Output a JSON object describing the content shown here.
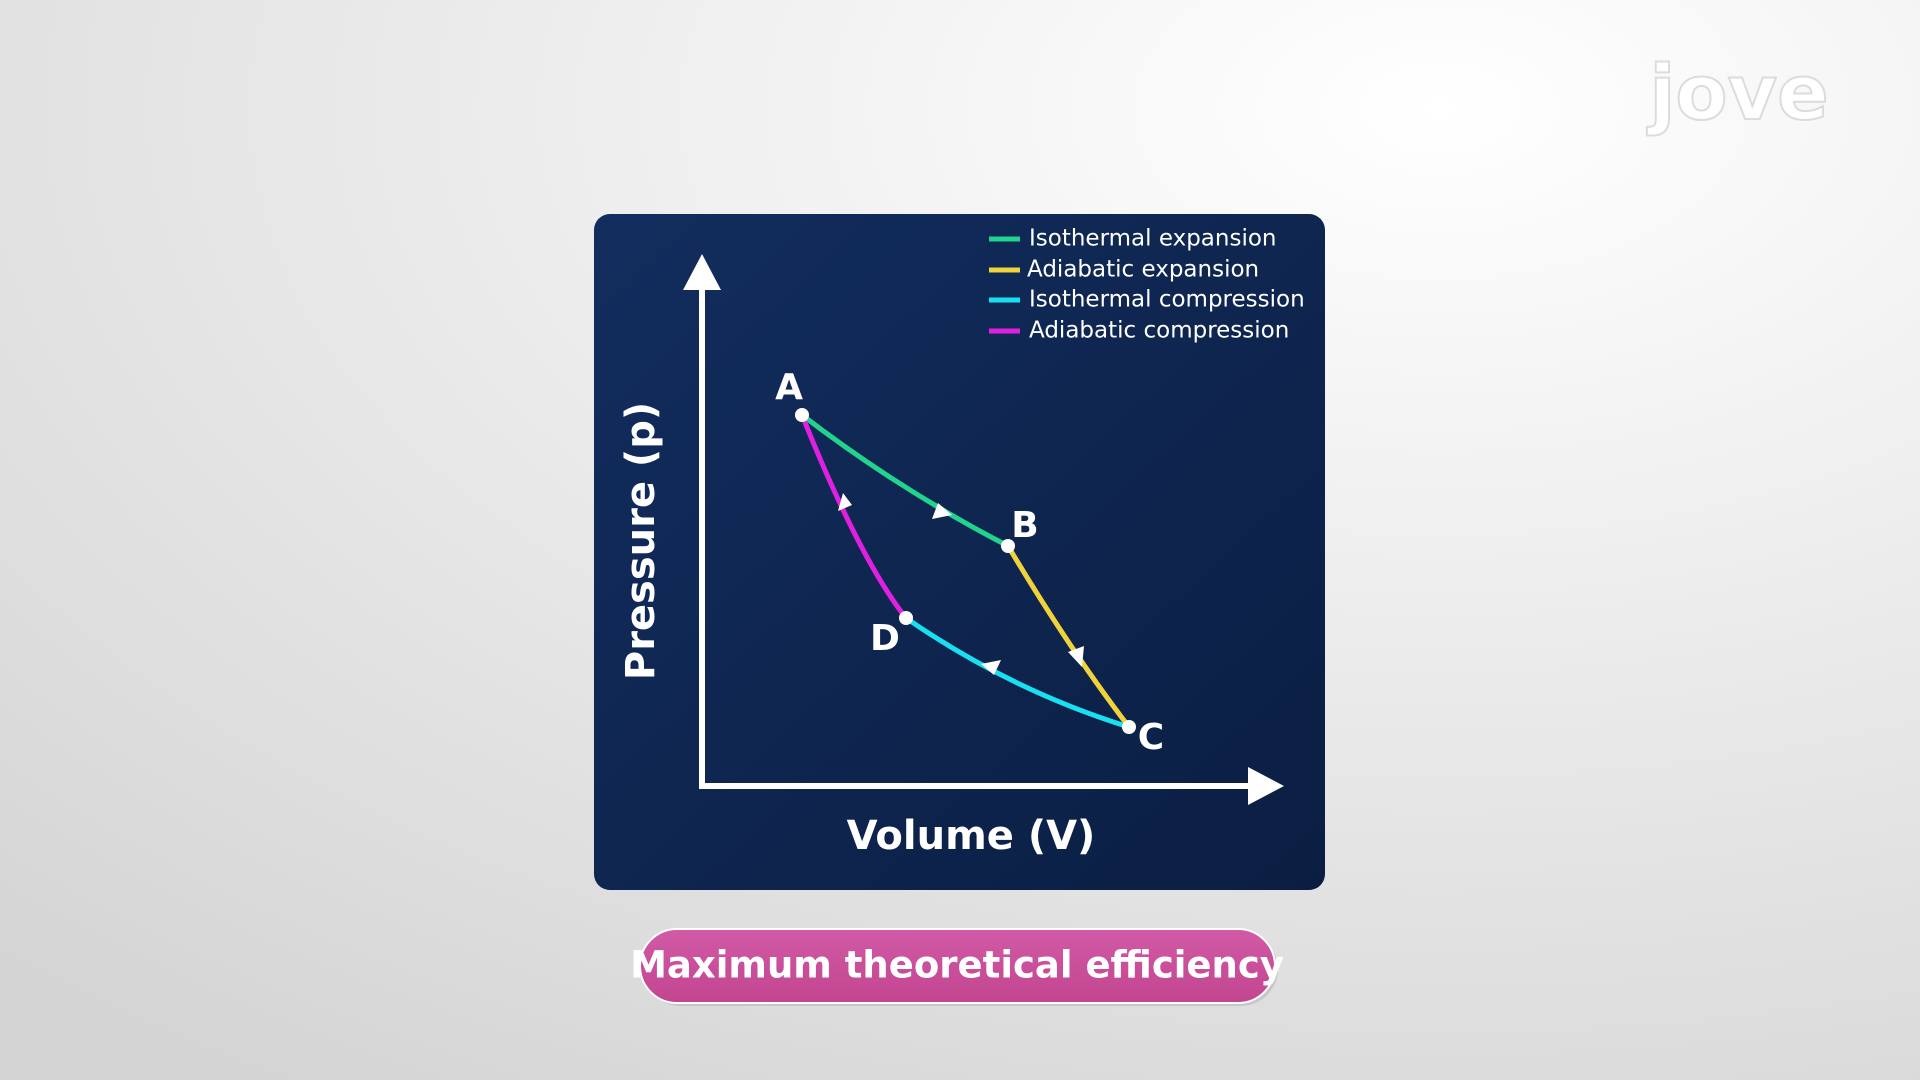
{
  "logo": "jove",
  "diagram": {
    "legend": [
      "Isothermal expansion",
      "Adiabatic expansion",
      "Isothermal compression",
      "Adiabatic compression"
    ],
    "points": [
      "A",
      "B",
      "C",
      "D"
    ],
    "y_axis_label": "Pressure (p)",
    "x_axis_label": "Volume (V)"
  },
  "button": "Maximum theoretical efficiency"
}
